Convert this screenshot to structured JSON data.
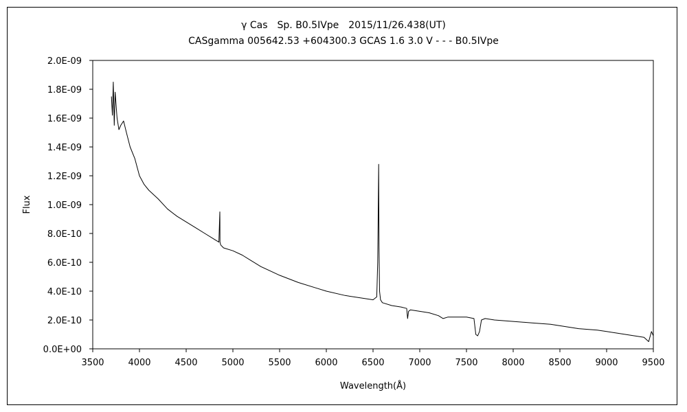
{
  "chart_data": {
    "type": "line",
    "title": "γ Cas　Sp. B0.5IVpe　2015/11/26.438(UT)",
    "subtitle": "CASgamma 005642.53 +604300.3 GCAS 1.6 3.0 V - - - B0.5IVpe",
    "xlabel": "Wavelength(Å)",
    "ylabel": "Flux",
    "xlim": [
      3500,
      9500
    ],
    "ylim": [
      0,
      2e-09
    ],
    "x_ticks": [
      "3500",
      "4000",
      "4500",
      "5000",
      "5500",
      "6000",
      "6500",
      "7000",
      "7500",
      "8000",
      "8500",
      "9000",
      "9500"
    ],
    "y_ticks": [
      "0.0E+00",
      "2.0E-10",
      "4.0E-10",
      "6.0E-10",
      "8.0E-10",
      "1.0E-09",
      "1.2E-09",
      "1.4E-09",
      "1.6E-09",
      "1.8E-09",
      "2.0E-09"
    ],
    "grid": false,
    "legend": "none",
    "series": [
      {
        "color": "#000000",
        "x": [
          3700,
          3710,
          3720,
          3730,
          3740,
          3760,
          3780,
          3800,
          3830,
          3860,
          3900,
          3950,
          4000,
          4050,
          4100,
          4200,
          4300,
          4400,
          4500,
          4600,
          4700,
          4800,
          4850,
          4860,
          4861,
          4862,
          4870,
          4900,
          5000,
          5100,
          5200,
          5300,
          5500,
          5700,
          5900,
          6000,
          6200,
          6400,
          6500,
          6540,
          6550,
          6560,
          6562,
          6564,
          6570,
          6580,
          6600,
          6700,
          6800,
          6860,
          6870,
          6880,
          6900,
          7000,
          7100,
          7200,
          7250,
          7300,
          7400,
          7500,
          7580,
          7600,
          7620,
          7640,
          7660,
          7700,
          7800,
          8000,
          8200,
          8400,
          8500,
          8700,
          8900,
          9000,
          9100,
          9200,
          9300,
          9400,
          9450,
          9480,
          9500
        ],
        "y": [
          1.75e-09,
          1.62e-09,
          1.85e-09,
          1.55e-09,
          1.78e-09,
          1.6e-09,
          1.52e-09,
          1.55e-09,
          1.58e-09,
          1.5e-09,
          1.4e-09,
          1.32e-09,
          1.2e-09,
          1.14e-09,
          1.1e-09,
          1.04e-09,
          9.7e-10,
          9.2e-10,
          8.8e-10,
          8.4e-10,
          8e-10,
          7.6e-10,
          7.4e-10,
          9.5e-10,
          9e-10,
          7.4e-10,
          7.2e-10,
          7e-10,
          6.8e-10,
          6.5e-10,
          6.1e-10,
          5.7e-10,
          5.1e-10,
          4.6e-10,
          4.2e-10,
          4e-10,
          3.7e-10,
          3.5e-10,
          3.4e-10,
          3.6e-10,
          6e-10,
          1.28e-09,
          1e-09,
          7e-10,
          4e-10,
          3.4e-10,
          3.2e-10,
          3e-10,
          2.9e-10,
          2.8e-10,
          2.1e-10,
          2.6e-10,
          2.7e-10,
          2.6e-10,
          2.5e-10,
          2.3e-10,
          2.1e-10,
          2.2e-10,
          2.2e-10,
          2.2e-10,
          2.1e-10,
          1e-10,
          9e-11,
          1.2e-10,
          2e-10,
          2.1e-10,
          2e-10,
          1.9e-10,
          1.8e-10,
          1.7e-10,
          1.6e-10,
          1.4e-10,
          1.3e-10,
          1.2e-10,
          1.1e-10,
          1e-10,
          9e-11,
          8e-11,
          5e-11,
          1.2e-10,
          9e-11
        ]
      }
    ]
  }
}
